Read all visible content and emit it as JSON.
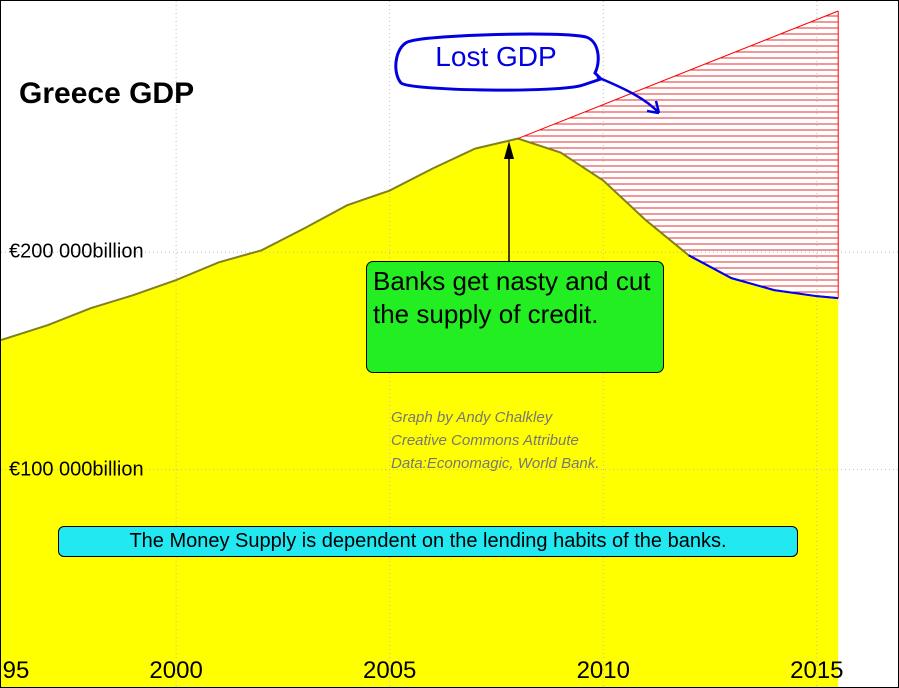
{
  "chart_data": {
    "type": "area",
    "title": "Greece GDP",
    "xlim": [
      1995.9,
      2016.9
    ],
    "ylim": [
      0,
      315600
    ],
    "xticks": [
      {
        "value": 1995,
        "label": "95"
      },
      2000,
      2005,
      2010,
      2015
    ],
    "yticks": [
      {
        "value": 100000,
        "label": "€100 000billion"
      },
      {
        "value": 200000,
        "label": "€200 000billion"
      }
    ],
    "grid": true,
    "x": [
      1995.9,
      1997,
      1998,
      1999,
      2000,
      2001,
      2002,
      2003,
      2004,
      2005,
      2006,
      2007,
      2008,
      2009,
      2010,
      2011,
      2012,
      2013,
      2014,
      2015,
      2015.5
    ],
    "series": [
      {
        "color": "#ffff00",
        "line_color": "#808020",
        "recent_color": "#0000ff",
        "recent_from": 2012,
        "values": [
          159600,
          166500,
          174300,
          180300,
          187200,
          195400,
          200900,
          211000,
          221600,
          228400,
          238500,
          247700,
          252300,
          245900,
          233000,
          214700,
          198600,
          188100,
          182600,
          179800,
          178900
        ]
      },
      {
        "color": "#ff0000",
        "x": [
          2008,
          2015.5
        ],
        "values": [
          252300,
          311000
        ]
      }
    ],
    "annotations": {
      "lost_gdp": "Lost GDP",
      "banks": "Banks get nasty and cut the supply of credit.",
      "credit": [
        "Graph by Andy Chalkley",
        "Creative Commons Attribute",
        "Data:Economagic, World Bank."
      ],
      "money_supply": "The Money Supply is dependent on the lending habits of the banks."
    }
  }
}
